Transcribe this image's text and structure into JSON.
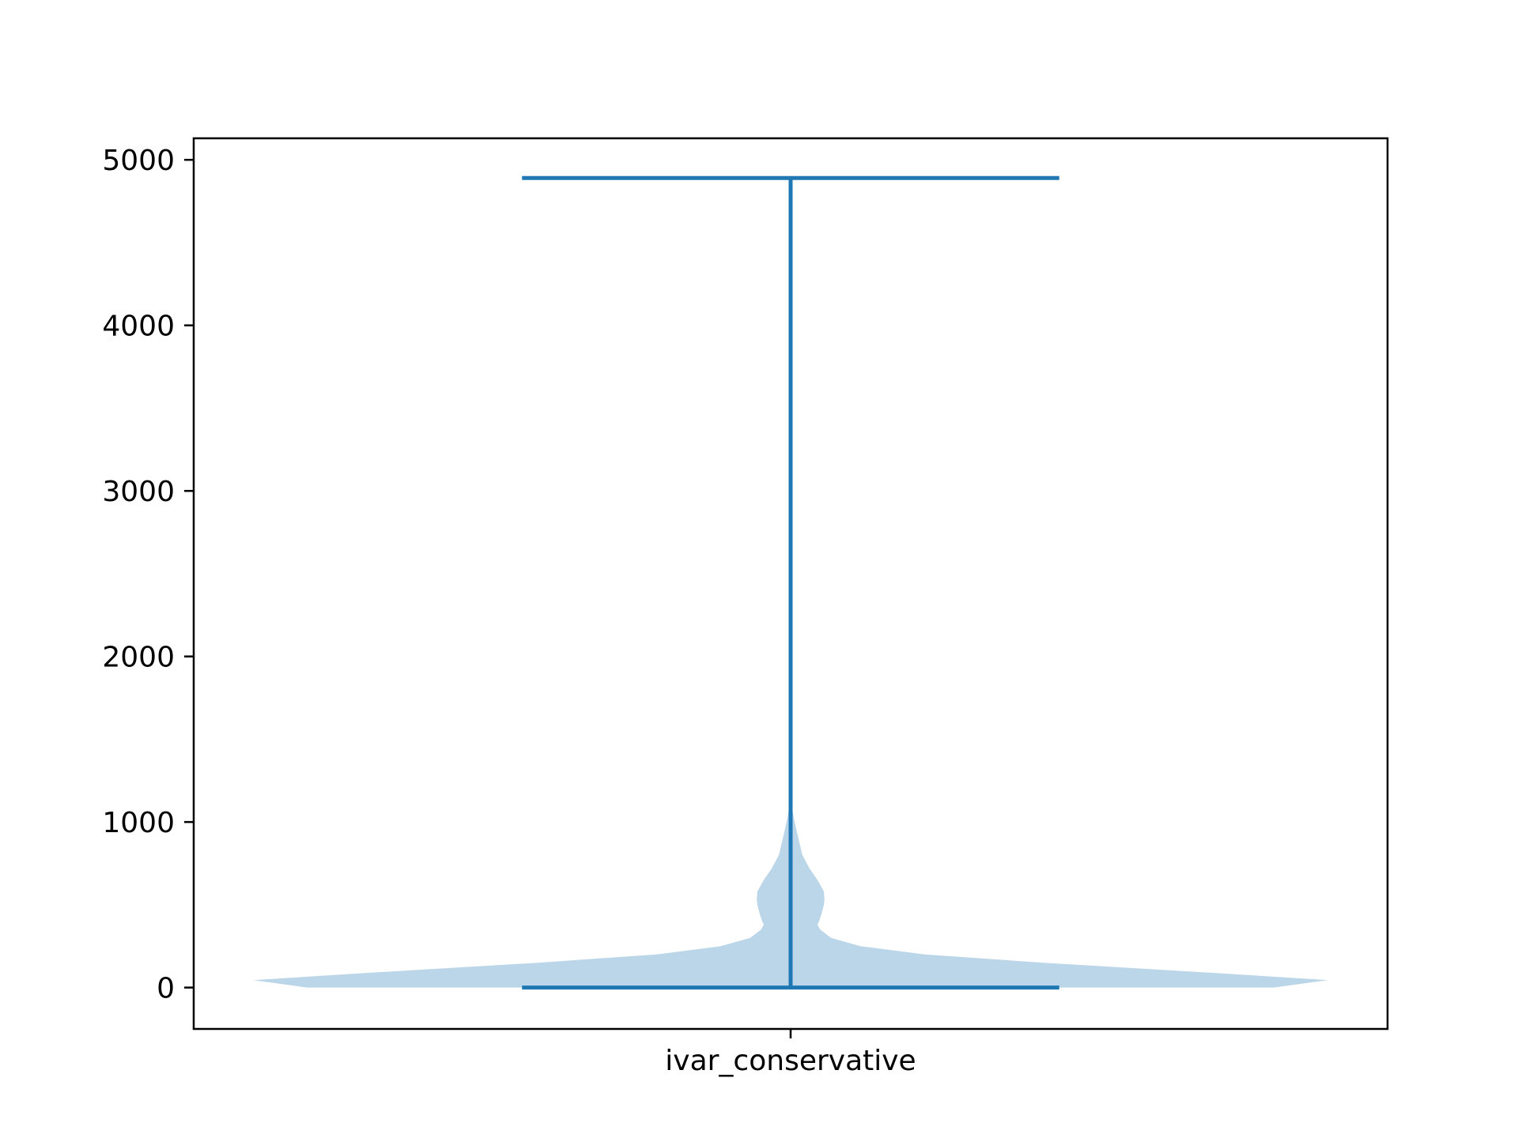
{
  "chart_data": {
    "type": "violin",
    "title": "",
    "xlabel": "",
    "ylabel": "",
    "categories": [
      "ivar_conservative"
    ],
    "ylim": [
      -250,
      5130
    ],
    "yticks": [
      0,
      1000,
      2000,
      3000,
      4000,
      5000
    ],
    "ytick_labels": [
      "0",
      "1000",
      "2000",
      "3000",
      "4000",
      "5000"
    ],
    "grid": false,
    "legend": "none",
    "violins": [
      {
        "category": "ivar_conservative",
        "min": 0,
        "max": 4890,
        "density_profile": [
          {
            "y": 0,
            "w": 0.9
          },
          {
            "y": 45,
            "w": 1.0
          },
          {
            "y": 90,
            "w": 0.78
          },
          {
            "y": 150,
            "w": 0.47
          },
          {
            "y": 200,
            "w": 0.25
          },
          {
            "y": 250,
            "w": 0.13
          },
          {
            "y": 300,
            "w": 0.075
          },
          {
            "y": 350,
            "w": 0.055
          },
          {
            "y": 380,
            "w": 0.05
          },
          {
            "y": 400,
            "w": 0.053
          },
          {
            "y": 450,
            "w": 0.058
          },
          {
            "y": 500,
            "w": 0.062
          },
          {
            "y": 530,
            "w": 0.063
          },
          {
            "y": 580,
            "w": 0.062
          },
          {
            "y": 650,
            "w": 0.05
          },
          {
            "y": 720,
            "w": 0.035
          },
          {
            "y": 800,
            "w": 0.022
          },
          {
            "y": 880,
            "w": 0.016
          },
          {
            "y": 950,
            "w": 0.011
          },
          {
            "y": 1040,
            "w": 0.005
          },
          {
            "y": 1150,
            "w": 0.0
          }
        ]
      }
    ],
    "colors": {
      "body": "#1f77b4",
      "body_opacity": 0.3,
      "lines": "#1f77b4",
      "axes": "#000000"
    }
  }
}
